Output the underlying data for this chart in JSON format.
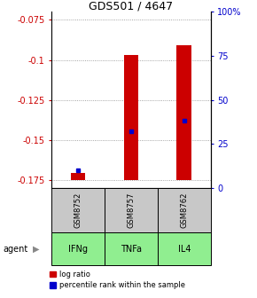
{
  "title": "GDS501 / 4647",
  "ylim_left": [
    -0.18,
    -0.07
  ],
  "yticks_left": [
    -0.175,
    -0.15,
    -0.125,
    -0.1,
    -0.075
  ],
  "ytick_labels_left": [
    "-0.175",
    "-0.15",
    "-0.125",
    "-0.1",
    "-0.075"
  ],
  "yticks_right_pct": [
    0,
    25,
    50,
    75,
    100
  ],
  "ytick_labels_right": [
    "0",
    "25",
    "50",
    "75",
    "100%"
  ],
  "categories": [
    "GSM8752",
    "GSM8757",
    "GSM8762"
  ],
  "agents": [
    "IFNg",
    "TNFa",
    "IL4"
  ],
  "bar_bottoms": [
    -0.175,
    -0.175,
    -0.175
  ],
  "bar_tops": [
    -0.171,
    -0.097,
    -0.091
  ],
  "bar_color": "#cc0000",
  "bar_width": 0.28,
  "percentile_ranks_pct": [
    10,
    32,
    38
  ],
  "percentile_color": "#0000cc",
  "grid_linestyle": "dotted",
  "grid_color": "#888888",
  "gray_box_color": "#c8c8c8",
  "green_box_color": "#90ee90",
  "legend_red_label": "log ratio",
  "legend_blue_label": "percentile rank within the sample",
  "agent_label": "agent",
  "left_axis_color": "#cc0000",
  "right_axis_color": "#0000cc",
  "title_fontsize": 9,
  "tick_fontsize": 7,
  "legend_fontsize": 6,
  "gsm_fontsize": 6,
  "agent_fontsize": 7
}
